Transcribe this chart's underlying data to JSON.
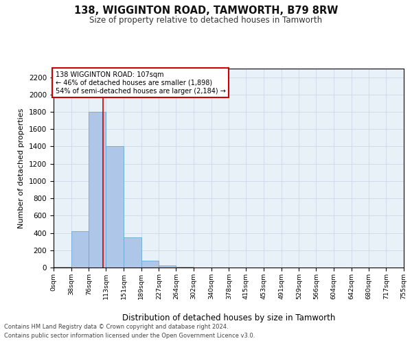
{
  "title": "138, WIGGINTON ROAD, TAMWORTH, B79 8RW",
  "subtitle": "Size of property relative to detached houses in Tamworth",
  "xlabel": "Distribution of detached houses by size in Tamworth",
  "ylabel": "Number of detached properties",
  "footnote1": "Contains HM Land Registry data © Crown copyright and database right 2024.",
  "footnote2": "Contains public sector information licensed under the Open Government Licence v3.0.",
  "property_size": 107,
  "annotation_line1": "138 WIGGINTON ROAD: 107sqm",
  "annotation_line2": "← 46% of detached houses are smaller (1,898)",
  "annotation_line3": "54% of semi-detached houses are larger (2,184) →",
  "bin_edges": [
    0,
    38,
    76,
    113,
    151,
    189,
    227,
    264,
    302,
    340,
    378,
    415,
    453,
    491,
    529,
    566,
    604,
    642,
    680,
    717,
    755
  ],
  "bar_heights": [
    5,
    420,
    1800,
    1400,
    350,
    80,
    25,
    5,
    0,
    0,
    0,
    0,
    0,
    0,
    0,
    0,
    0,
    0,
    0,
    0
  ],
  "bar_color": "#aec6e8",
  "bar_edge_color": "#6aaad4",
  "vline_color": "#cc0000",
  "vline_x": 107,
  "ylim": [
    0,
    2300
  ],
  "yticks": [
    0,
    200,
    400,
    600,
    800,
    1000,
    1200,
    1400,
    1600,
    1800,
    2000,
    2200
  ],
  "annotation_box_color": "#cc0000",
  "background_color": "#ffffff",
  "grid_color": "#ccd9e8",
  "ax_facecolor": "#e8f0f8"
}
